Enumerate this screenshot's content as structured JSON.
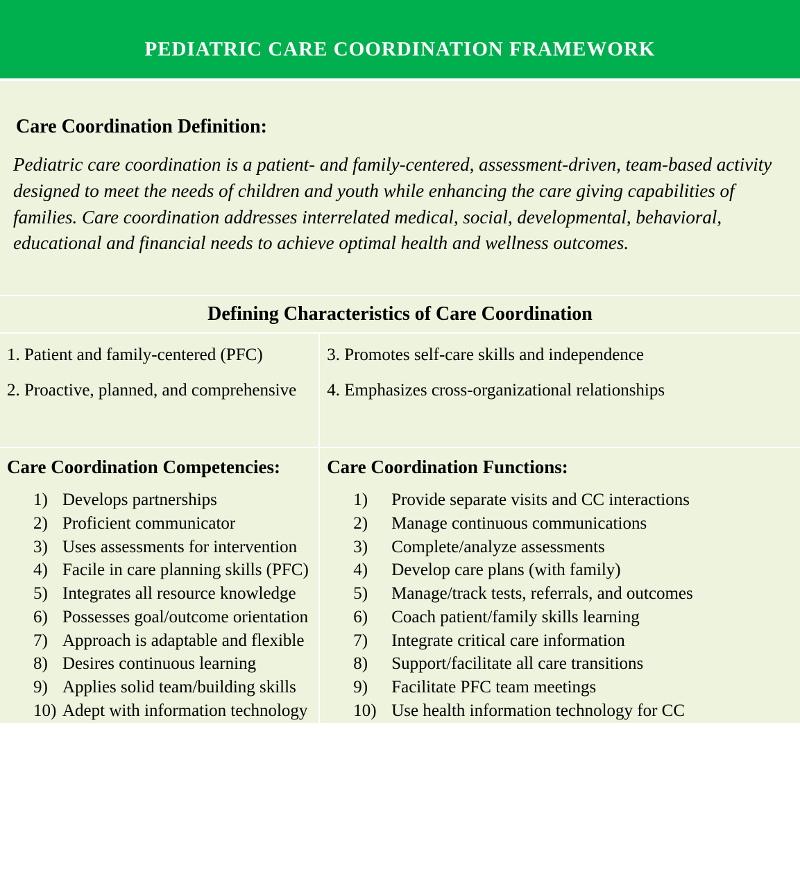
{
  "colors": {
    "header_bg": "#00b04f",
    "header_text": "#ffffff",
    "body_bg": "#edf3dc",
    "text": "#000000",
    "divider": "#ffffff"
  },
  "header": {
    "title": "PEDIATRIC CARE COORDINATION FRAMEWORK"
  },
  "definition": {
    "heading": "Care Coordination Definition:",
    "text": "Pediatric care coordination is a patient- and family-centered, assessment-driven, team-based activity designed to meet the needs of children and youth while enhancing the care giving capabilities of families. Care coordination addresses interrelated medical, social, developmental, behavioral, educational and financial needs to achieve optimal health and wellness outcomes."
  },
  "characteristics": {
    "heading": "Defining Characteristics of Care Coordination",
    "left": [
      "1. Patient and family-centered (PFC)",
      "2. Proactive, planned, and comprehensive"
    ],
    "right": [
      "3. Promotes self-care skills and independence",
      "4. Emphasizes cross-organizational relationships"
    ]
  },
  "competencies": {
    "heading": "Care Coordination Competencies:",
    "items": [
      "Develops partnerships",
      "Proficient communicator",
      "Uses assessments for intervention",
      "Facile in care planning skills (PFC)",
      "Integrates all resource knowledge",
      "Possesses goal/outcome orientation",
      "Approach is adaptable and flexible",
      "Desires continuous learning",
      "Applies solid team/building skills",
      "Adept with information technology"
    ]
  },
  "functions": {
    "heading": "Care Coordination Functions:",
    "items": [
      "Provide separate visits and CC interactions",
      "Manage continuous communications",
      "Complete/analyze assessments",
      "Develop care plans (with family)",
      "Manage/track tests, referrals, and outcomes",
      "Coach patient/family skills learning",
      "Integrate critical care information",
      "Support/facilitate all care transitions",
      "Facilitate PFC team meetings",
      "Use health information technology for CC"
    ]
  }
}
